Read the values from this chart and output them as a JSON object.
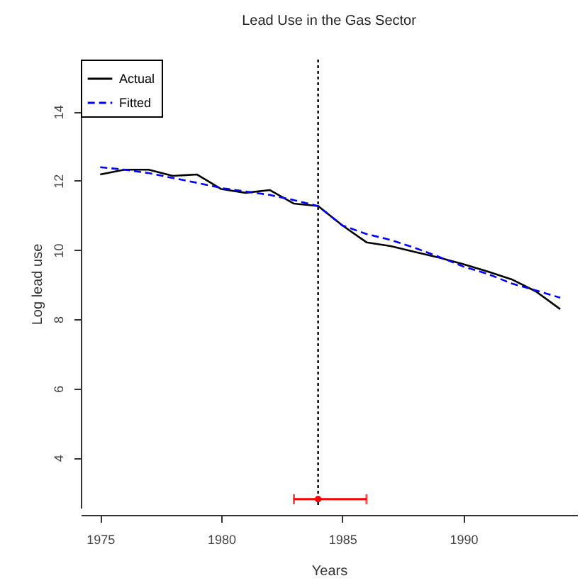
{
  "chart_data": {
    "type": "line",
    "title": "Lead Use in the Gas Sector",
    "xlabel": "Years",
    "ylabel": "Log lead use",
    "x": [
      1975,
      1976,
      1977,
      1978,
      1979,
      1980,
      1981,
      1982,
      1983,
      1984,
      1985,
      1986,
      1987,
      1988,
      1989,
      1990,
      1991,
      1992,
      1993,
      1994
    ],
    "series": [
      {
        "name": "Actual",
        "color": "#000000",
        "line_style": "solid",
        "values": [
          12.18,
          12.32,
          12.32,
          12.14,
          12.18,
          11.76,
          11.65,
          11.73,
          11.34,
          11.27,
          10.71,
          10.22,
          10.11,
          9.94,
          9.78,
          9.59,
          9.38,
          9.15,
          8.8,
          8.29
        ]
      },
      {
        "name": "Fitted",
        "color": "#0000ff",
        "line_style": "dashed",
        "values": [
          12.39,
          12.32,
          12.22,
          12.08,
          11.94,
          11.79,
          11.69,
          11.59,
          11.44,
          11.27,
          10.71,
          10.46,
          10.29,
          10.06,
          9.8,
          9.52,
          9.31,
          9.03,
          8.83,
          8.62
        ]
      },
      {
        "type": "scatter",
        "color": "#ff0000",
        "marker": "circle",
        "x": [
          1984
        ],
        "values": [
          2.8
        ],
        "xerrors": [
          [
            1983,
            1986
          ]
        ]
      }
    ],
    "xlim": [
      1974.2,
      1994.7
    ],
    "xticks": [
      1975,
      1980,
      1985,
      1990
    ],
    "ylim": [
      2.55,
      15.5
    ],
    "yticks": [
      4,
      6,
      8,
      10,
      12,
      14
    ],
    "ref_lines": [
      {
        "axis": "x",
        "value": 1984,
        "color": "#000000",
        "line_style": "dotted"
      }
    ],
    "grid": false,
    "legend": "top left"
  }
}
